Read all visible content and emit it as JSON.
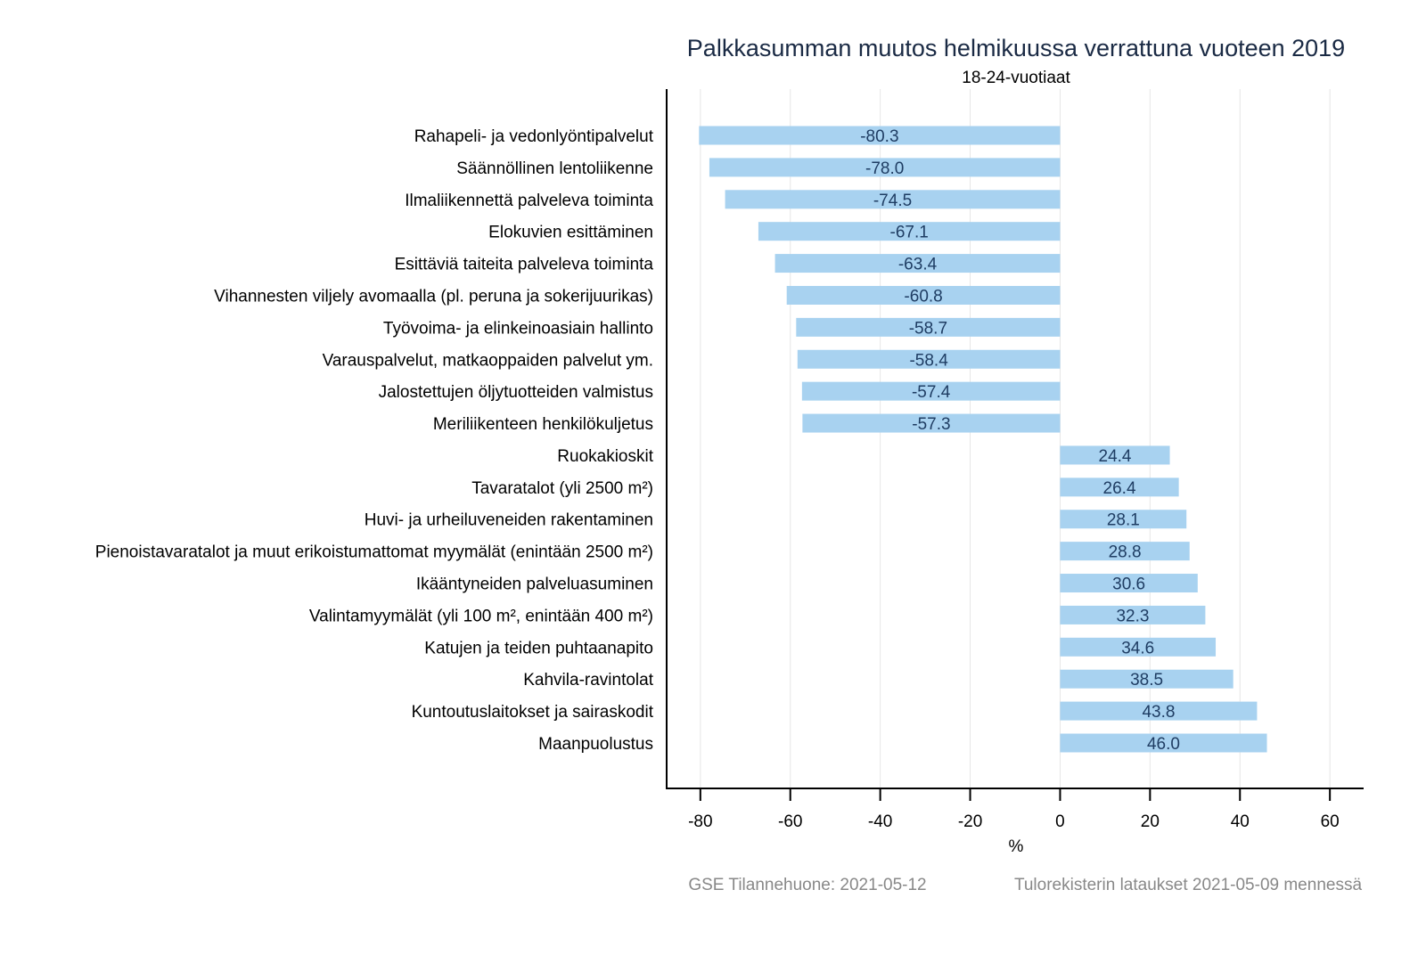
{
  "chart_data": {
    "type": "bar",
    "orientation": "horizontal",
    "title": "Palkkasumman muutos helmikuussa verrattuna vuoteen 2019",
    "subtitle": "18-24-vuotiaat",
    "xlabel": "%",
    "ylabel": "",
    "xlim": [
      -87.5,
      67.5
    ],
    "xticks": [
      -80,
      -60,
      -40,
      -20,
      0,
      20,
      40,
      60
    ],
    "xtick_labels": [
      "-80",
      "-60",
      "-40",
      "-20",
      "0",
      "20",
      "40",
      "60"
    ],
    "grid": "vertical",
    "categories": [
      "Rahapeli- ja vedonlyöntipalvelut",
      "Säännöllinen lentoliikenne",
      "Ilmaliikennettä palveleva toiminta",
      "Elokuvien esittäminen",
      "Esittäviä taiteita palveleva toiminta",
      "Vihannesten viljely avomaalla (pl. peruna ja sokerijuurikas)",
      "Työvoima- ja elinkeinoasiain hallinto",
      "Varauspalvelut, matkaoppaiden palvelut ym.",
      "Jalostettujen öljytuotteiden valmistus",
      "Meriliikenteen henkilökuljetus",
      "Ruokakioskit",
      "Tavaratalot (yli 2500 m²)",
      "Huvi- ja urheiluveneiden rakentaminen",
      "Pienoistavaratalot ja muut erikoistumattomat myymälät (enintään 2500 m²)",
      "Ikääntyneiden palveluasuminen",
      "Valintamyymälät (yli 100 m², enintään 400 m²)",
      "Katujen ja teiden puhtaanapito",
      "Kahvila-ravintolat",
      "Kuntoutuslaitokset ja sairaskodit",
      "Maanpuolustus"
    ],
    "values": [
      -80.3,
      -78.0,
      -74.5,
      -67.1,
      -63.4,
      -60.8,
      -58.7,
      -58.4,
      -57.4,
      -57.3,
      24.4,
      26.4,
      28.1,
      28.8,
      30.6,
      32.3,
      34.6,
      38.5,
      43.8,
      46.0
    ],
    "value_labels": [
      "-80.3",
      "-78.0",
      "-74.5",
      "-67.1",
      "-63.4",
      "-60.8",
      "-58.7",
      "-58.4",
      "-57.4",
      "-57.3",
      "24.4",
      "26.4",
      "28.1",
      "28.8",
      "30.6",
      "32.3",
      "34.6",
      "38.5",
      "43.8",
      "46.0"
    ],
    "bar_color": "#a8d2f0",
    "label_color": "#1f3d63"
  },
  "footer": {
    "left": "GSE Tilannehuone: 2021-05-12",
    "right": "Tulorekisterin lataukset 2021-05-09 mennessä"
  }
}
